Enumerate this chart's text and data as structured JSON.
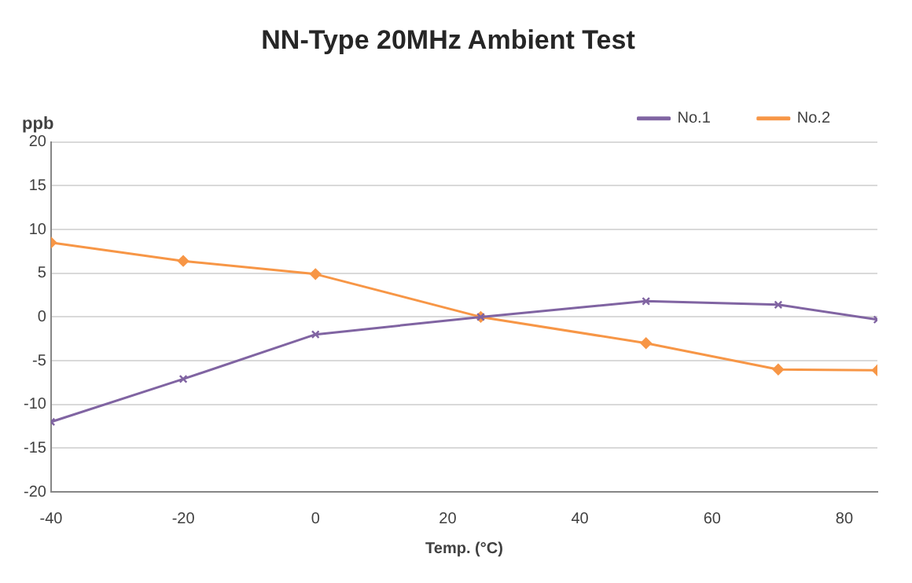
{
  "chart_data": {
    "type": "line",
    "title": "NN-Type 20MHz Ambient Test",
    "xlabel": "Temp. (°C)",
    "ylabel": "ppb",
    "xlim": [
      -40,
      85
    ],
    "xticks": [
      -40,
      -20,
      0,
      20,
      40,
      60,
      80
    ],
    "ylim": [
      -20,
      20
    ],
    "yticks": [
      -20,
      -15,
      -10,
      -5,
      0,
      5,
      10,
      15,
      20
    ],
    "grid": "y",
    "legend": "top right",
    "line_style": "solid",
    "series": [
      {
        "name": "No.1",
        "color": "#8064a2",
        "marker": "cross",
        "x": [
          -40,
          -20,
          0,
          25,
          50,
          70,
          85
        ],
        "values": [
          -12,
          -7.1,
          -2,
          0,
          1.8,
          1.4,
          -0.3
        ]
      },
      {
        "name": "No.2",
        "color": "#f79646",
        "marker": "diamond",
        "x": [
          -40,
          -20,
          0,
          25,
          50,
          70,
          85
        ],
        "values": [
          8.5,
          6.4,
          4.9,
          0,
          -3,
          -6,
          -6.1
        ]
      }
    ]
  }
}
